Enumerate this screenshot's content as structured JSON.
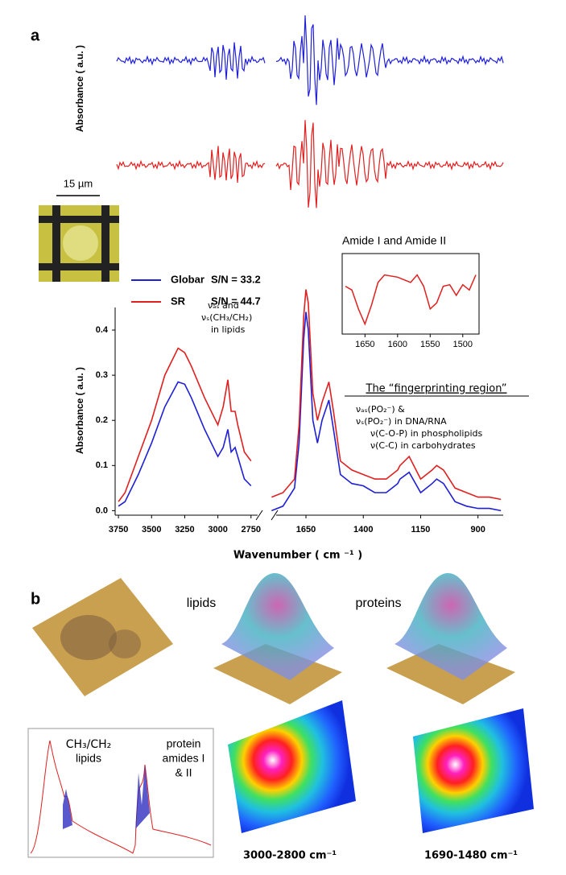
{
  "panel_labels": [
    "a",
    "b"
  ],
  "chart_data": [
    {
      "type": "line",
      "y_label": "Absorbance ( a.u. )",
      "x_label": "Wavenumber ( cm ⁻¹ )",
      "x": [
        3750,
        3700,
        3600,
        3500,
        3400,
        3300,
        3250,
        3200,
        3100,
        3000,
        2960,
        2925,
        2900,
        2870,
        2850,
        2800,
        2750,
        1800,
        1750,
        1700,
        1680,
        1660,
        1650,
        1640,
        1620,
        1600,
        1580,
        1550,
        1530,
        1500,
        1450,
        1400,
        1350,
        1300,
        1250,
        1240,
        1200,
        1150,
        1100,
        1080,
        1050,
        1000,
        950,
        900,
        850,
        800
      ],
      "series": [
        {
          "name": "Globar",
          "snr": "S/N = 33.2",
          "color": "#1f1fd6",
          "values": [
            0.01,
            0.02,
            0.08,
            0.15,
            0.23,
            0.285,
            0.28,
            0.25,
            0.18,
            0.12,
            0.14,
            0.18,
            0.13,
            0.14,
            0.12,
            0.07,
            0.055,
            0.0,
            0.01,
            0.05,
            0.15,
            0.38,
            0.44,
            0.4,
            0.2,
            0.15,
            0.2,
            0.245,
            0.18,
            0.08,
            0.06,
            0.055,
            0.04,
            0.04,
            0.06,
            0.07,
            0.085,
            0.04,
            0.06,
            0.07,
            0.06,
            0.02,
            0.01,
            0.005,
            0.005,
            0.0
          ]
        },
        {
          "name": "SR",
          "snr": "S/N = 44.7",
          "color": "#e02020",
          "values": [
            0.02,
            0.04,
            0.12,
            0.2,
            0.3,
            0.36,
            0.35,
            0.32,
            0.25,
            0.19,
            0.23,
            0.29,
            0.22,
            0.22,
            0.19,
            0.13,
            0.11,
            0.03,
            0.04,
            0.07,
            0.19,
            0.43,
            0.49,
            0.46,
            0.26,
            0.2,
            0.24,
            0.285,
            0.22,
            0.11,
            0.09,
            0.08,
            0.07,
            0.07,
            0.09,
            0.1,
            0.12,
            0.07,
            0.09,
            0.1,
            0.09,
            0.05,
            0.04,
            0.03,
            0.03,
            0.025
          ]
        }
      ],
      "xlim_segments": [
        [
          3775,
          2700
        ],
        [
          1780,
          790
        ]
      ],
      "xticks": [
        3750,
        3500,
        3250,
        3000,
        2750,
        1650,
        1400,
        1150,
        900
      ],
      "ylim": [
        -0.01,
        0.45
      ],
      "yticks": [
        {
          "value": 0,
          "label": "0.0"
        },
        0.1,
        0.2,
        0.3,
        0.4
      ],
      "annotations": [
        "νₐₛ and",
        "νₛ(CH₃/CH₂)",
        "in lipids"
      ],
      "region_title": "The “fingerprinting region”",
      "region_notes": [
        "νₐₛ(PO₂⁻) &",
        "νₛ(PO₂⁻) in DNA/RNA",
        "ν(C-O-P)  in phospholipids",
        "ν(C-C)  in carbohydrates"
      ]
    },
    {
      "type": "line",
      "title": "Amide I and Amide II",
      "x": [
        1680,
        1670,
        1660,
        1650,
        1640,
        1630,
        1620,
        1600,
        1580,
        1570,
        1560,
        1550,
        1540,
        1530,
        1520,
        1510,
        1500,
        1490,
        1480
      ],
      "series": [
        {
          "color": "#e02020",
          "values": [
            0.6,
            0.55,
            0.3,
            0.1,
            0.35,
            0.65,
            0.75,
            0.72,
            0.65,
            0.75,
            0.6,
            0.3,
            0.38,
            0.6,
            0.62,
            0.48,
            0.62,
            0.55,
            0.75
          ]
        }
      ],
      "xlim": [
        1685,
        1475
      ],
      "ylim": [
        0,
        1
      ],
      "xticks": [
        1650,
        1600,
        1550,
        1500
      ]
    }
  ],
  "scale_bar": "15 µm",
  "panel_b": {
    "map_titles": [
      "lipids",
      "proteins"
    ],
    "ranges": [
      "3000-2800 cm⁻¹",
      "1690-1480 cm⁻¹"
    ],
    "bands": [
      [
        "CH₃/CH₂",
        "lipids"
      ],
      [
        "protein",
        "amides I",
        "& II"
      ]
    ]
  }
}
